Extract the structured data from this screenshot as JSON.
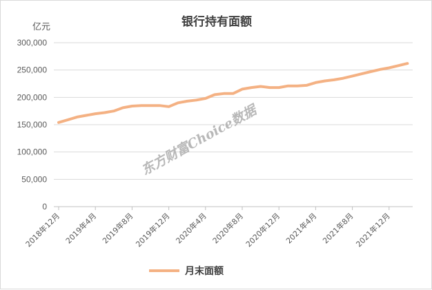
{
  "chart_data": {
    "type": "line",
    "title": "银行持有面额",
    "unit_label": "亿元",
    "watermark": "东方财富Choice数据",
    "ylim": [
      0,
      300000
    ],
    "y_ticks": [
      "0",
      "50,000",
      "100,000",
      "150,000",
      "200,000",
      "250,000",
      "300,000"
    ],
    "x_tick_labels": [
      "2018年12月",
      "2019年4月",
      "2019年8月",
      "2019年12月",
      "2020年4月",
      "2020年8月",
      "2020年12月",
      "2021年4月",
      "2021年8月",
      "2021年12月"
    ],
    "x_tick_interval_months": 4,
    "grid": "horizontal",
    "legend_position": "bottom",
    "colors": {
      "line": "#F4B183",
      "grid": "#d9d9d9",
      "axis": "#bfbfbf"
    },
    "x": [
      "2018-12",
      "2019-01",
      "2019-02",
      "2019-03",
      "2019-04",
      "2019-05",
      "2019-06",
      "2019-07",
      "2019-08",
      "2019-09",
      "2019-10",
      "2019-11",
      "2019-12",
      "2020-01",
      "2020-02",
      "2020-03",
      "2020-04",
      "2020-05",
      "2020-06",
      "2020-07",
      "2020-08",
      "2020-09",
      "2020-10",
      "2020-11",
      "2020-12",
      "2021-01",
      "2021-02",
      "2021-03",
      "2021-04",
      "2021-05",
      "2021-06",
      "2021-07",
      "2021-08",
      "2021-09",
      "2021-10",
      "2021-11",
      "2021-12",
      "2022-01",
      "2022-02"
    ],
    "series": [
      {
        "name": "月末面额",
        "values": [
          154000,
          159000,
          164000,
          167000,
          170000,
          172000,
          175000,
          181000,
          184000,
          185000,
          185000,
          185000,
          183000,
          190000,
          193000,
          195000,
          198000,
          205000,
          207000,
          207000,
          215000,
          218000,
          220000,
          218000,
          218000,
          221000,
          221000,
          222000,
          227000,
          230000,
          232000,
          235000,
          239000,
          243000,
          247000,
          251000,
          254000,
          258000,
          262000
        ]
      }
    ]
  }
}
